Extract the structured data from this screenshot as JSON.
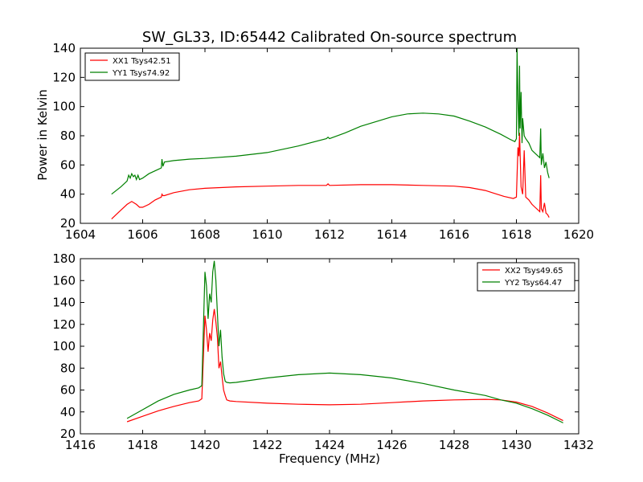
{
  "figure": {
    "title": "SW_GL33, ID:65442 Calibrated On-source spectrum",
    "xlabel": "Frequency (MHz)",
    "ylabel": "Power in Kelvin"
  },
  "colors": {
    "xx": "#ff0000",
    "yy": "#008000",
    "axes": "#000000",
    "background": "#ffffff"
  },
  "chart_data": [
    {
      "type": "line",
      "panel": "top",
      "title": "SW_GL33, ID:65442 Calibrated On-source spectrum",
      "xlabel": "",
      "ylabel": "Power in Kelvin",
      "xlim": [
        1604,
        1620
      ],
      "ylim": [
        20,
        140
      ],
      "xticks": [
        1604,
        1606,
        1608,
        1610,
        1612,
        1614,
        1616,
        1618,
        1620
      ],
      "yticks": [
        20,
        40,
        60,
        80,
        100,
        120,
        140
      ],
      "grid": false,
      "legend": "top-left",
      "series": [
        {
          "name": "XX1 Tsys42.51",
          "color": "#ff0000",
          "x": [
            1605.0,
            1605.3,
            1605.5,
            1605.65,
            1605.8,
            1605.9,
            1606.0,
            1606.2,
            1606.4,
            1606.6,
            1606.62,
            1606.65,
            1606.7,
            1607.0,
            1607.5,
            1608.0,
            1609.0,
            1610.0,
            1611.0,
            1611.9,
            1611.95,
            1612.0,
            1613.0,
            1614.0,
            1615.0,
            1616.0,
            1616.5,
            1617.0,
            1617.3,
            1617.6,
            1617.9,
            1618.0,
            1618.05,
            1618.08,
            1618.1,
            1618.15,
            1618.2,
            1618.25,
            1618.3,
            1618.4,
            1618.5,
            1618.6,
            1618.7,
            1618.75,
            1618.78,
            1618.8,
            1618.85,
            1618.9,
            1618.95,
            1619.0,
            1619.05
          ],
          "y": [
            23,
            29,
            33,
            35,
            33,
            31,
            31,
            33,
            36,
            38,
            40,
            39,
            39,
            41,
            43,
            44,
            45,
            45.5,
            46,
            46,
            47,
            46,
            46.5,
            46.5,
            46,
            45.5,
            44.5,
            42.5,
            40.5,
            38.5,
            37,
            38,
            72,
            66,
            82,
            45,
            40,
            70,
            38,
            36,
            33,
            31,
            29,
            28,
            53,
            30,
            28,
            34,
            27,
            26,
            24
          ]
        },
        {
          "name": "YY1 Tsys74.92",
          "color": "#008000",
          "x": [
            1605.0,
            1605.3,
            1605.5,
            1605.55,
            1605.6,
            1605.65,
            1605.7,
            1605.75,
            1605.8,
            1605.85,
            1605.9,
            1606.0,
            1606.2,
            1606.5,
            1606.6,
            1606.62,
            1606.65,
            1606.7,
            1607.0,
            1607.5,
            1608.0,
            1609.0,
            1610.0,
            1611.0,
            1611.9,
            1611.95,
            1612.0,
            1612.5,
            1613.0,
            1614.0,
            1614.5,
            1615.0,
            1615.5,
            1616.0,
            1616.5,
            1617.0,
            1617.5,
            1617.8,
            1617.95,
            1618.0,
            1618.02,
            1618.05,
            1618.08,
            1618.1,
            1618.12,
            1618.15,
            1618.18,
            1618.2,
            1618.25,
            1618.3,
            1618.4,
            1618.5,
            1618.6,
            1618.7,
            1618.75,
            1618.78,
            1618.8,
            1618.85,
            1618.9,
            1618.95,
            1619.0,
            1619.05
          ],
          "y": [
            40,
            45,
            49,
            53,
            51,
            54,
            52,
            53,
            50,
            53,
            50,
            51,
            54,
            57,
            58,
            64,
            59,
            62,
            63,
            64,
            64.5,
            66,
            68.5,
            73,
            78,
            79,
            78,
            82,
            86.5,
            93,
            95,
            95.5,
            95,
            93.5,
            90,
            86,
            81,
            77.5,
            76,
            78,
            140,
            105,
            80,
            128,
            85,
            110,
            75,
            92,
            80,
            78,
            75,
            70,
            68,
            66,
            65,
            85,
            60,
            68,
            58,
            62,
            55,
            51
          ]
        }
      ]
    },
    {
      "type": "line",
      "panel": "bottom",
      "title": "",
      "xlabel": "Frequency (MHz)",
      "ylabel": "",
      "xlim": [
        1416,
        1432
      ],
      "ylim": [
        20,
        180
      ],
      "xticks": [
        1416,
        1418,
        1420,
        1422,
        1424,
        1426,
        1428,
        1430,
        1432
      ],
      "yticks": [
        20,
        40,
        60,
        80,
        100,
        120,
        140,
        160,
        180
      ],
      "grid": false,
      "legend": "top-right",
      "series": [
        {
          "name": "XX2 Tsys49.65",
          "color": "#ff0000",
          "x": [
            1417.5,
            1418.0,
            1418.5,
            1419.0,
            1419.5,
            1419.8,
            1419.9,
            1420.0,
            1420.05,
            1420.1,
            1420.15,
            1420.2,
            1420.25,
            1420.3,
            1420.35,
            1420.4,
            1420.45,
            1420.5,
            1420.55,
            1420.6,
            1420.65,
            1420.7,
            1420.8,
            1421.0,
            1422.0,
            1423.0,
            1424.0,
            1425.0,
            1426.0,
            1427.0,
            1428.0,
            1429.0,
            1429.5,
            1430.0,
            1430.5,
            1431.0,
            1431.5
          ],
          "y": [
            31,
            36,
            41,
            45,
            48.5,
            50,
            52,
            128,
            115,
            95,
            112,
            105,
            124,
            134,
            122,
            108,
            80,
            86,
            72,
            60,
            55,
            51,
            50,
            49.5,
            48,
            47,
            46.5,
            47,
            48.5,
            50,
            51,
            51.5,
            51,
            49,
            45,
            39,
            32
          ]
        },
        {
          "name": "YY2 Tsys64.47",
          "color": "#008000",
          "x": [
            1417.5,
            1418.0,
            1418.5,
            1419.0,
            1419.5,
            1419.8,
            1419.9,
            1420.0,
            1420.05,
            1420.1,
            1420.15,
            1420.2,
            1420.25,
            1420.3,
            1420.35,
            1420.4,
            1420.45,
            1420.5,
            1420.55,
            1420.6,
            1420.65,
            1420.7,
            1420.8,
            1421.0,
            1422.0,
            1423.0,
            1424.0,
            1425.0,
            1426.0,
            1427.0,
            1428.0,
            1429.0,
            1429.5,
            1430.0,
            1430.5,
            1431.0,
            1431.5
          ],
          "y": [
            34,
            42,
            50,
            56,
            60,
            62,
            64,
            168,
            155,
            125,
            148,
            140,
            168,
            178,
            160,
            130,
            100,
            115,
            90,
            75,
            68,
            67,
            66.5,
            67,
            71,
            74,
            75.5,
            74,
            71,
            66,
            60,
            55,
            51,
            48,
            43,
            37,
            30
          ]
        }
      ]
    }
  ]
}
